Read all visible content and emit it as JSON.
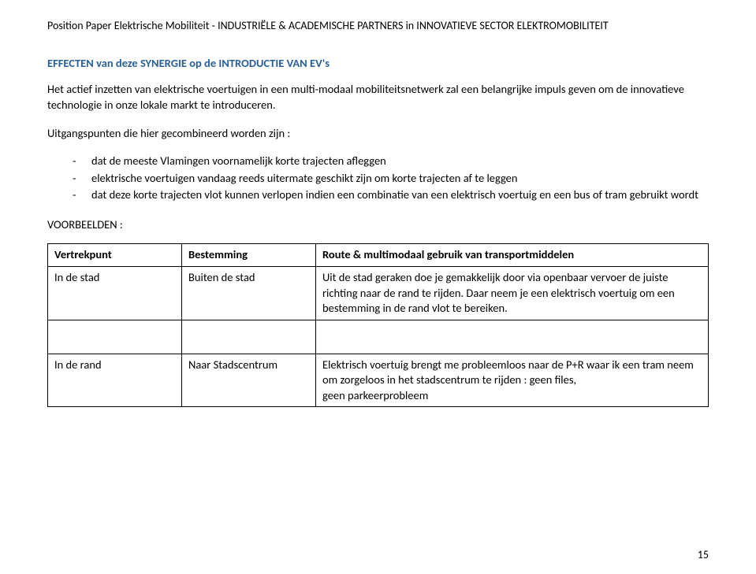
{
  "header": "Position Paper Elektrische Mobiliteit - INDUSTRIËLE & ACADEMISCHE PARTNERS in INNOVATIEVE SECTOR ELEKTROMOBILITEIT",
  "section_title": "EFFECTEN van deze SYNERGIE op de INTRODUCTIE VAN EV's",
  "intro_para": "Het actief inzetten van elektrische voertuigen in een multi-modaal mobiliteitsnetwerk zal een belangrijke impuls geven om de innovatieve technologie in onze lokale markt te introduceren.",
  "lead_line": "Uitgangspunten die hier gecombineerd worden zijn :",
  "bullets": [
    "dat de meeste Vlamingen voornamelijk korte trajecten afleggen",
    "elektrische voertuigen vandaag reeds uitermate geschikt zijn om korte trajecten af te leggen",
    "dat deze korte trajecten vlot kunnen verlopen indien een combinatie van een elektrisch voertuig en een bus of tram gebruikt wordt"
  ],
  "examples_label": "VOORBEELDEN :",
  "table": {
    "cols": [
      "Vertrekpunt",
      "Bestemming",
      "Route & multimodaal gebruik van transportmiddelen"
    ],
    "rows": [
      {
        "c1": "In de stad",
        "c2": "Buiten de stad",
        "c3": "Uit de stad geraken doe je gemakkelijk door via openbaar vervoer de juiste richting naar de rand te rijden. Daar neem je een elektrisch voertuig om een bestemming in de rand vlot te bereiken."
      },
      {
        "c1": "In de rand",
        "c2": "Naar Stadscentrum",
        "c3": "Elektrisch voertuig brengt me probleemloos naar de P+R waar ik een tram neem om zorgeloos in het stadscentrum te rijden : geen files,\ngeen parkeerprobleem"
      }
    ]
  },
  "page_number": "15"
}
